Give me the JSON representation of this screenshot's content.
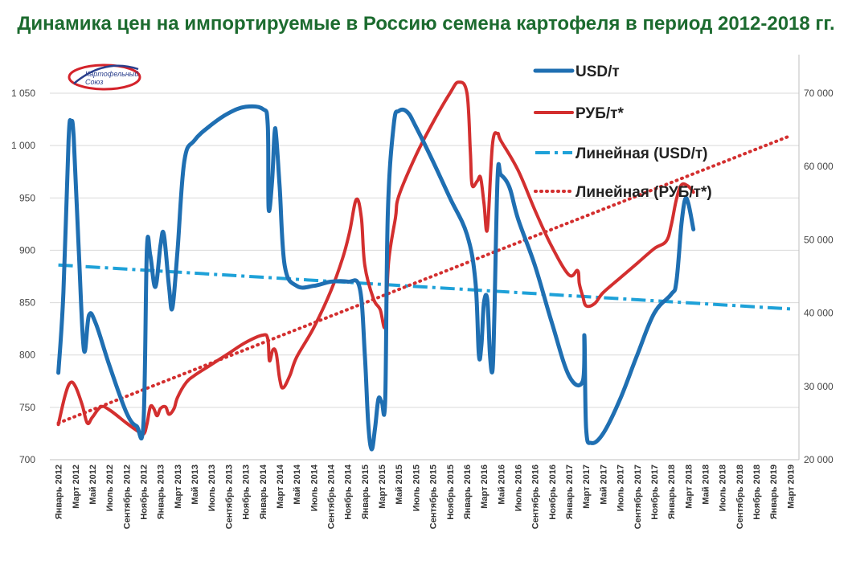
{
  "title": "Динамика цен на импортируемые в Россию семена картофеля в период 2012-2018 гг.",
  "logo": {
    "line1": "Картофельный",
    "line2": "Союз"
  },
  "colors": {
    "title": "#1c6b2f",
    "usd": "#1f6fb2",
    "rub": "#d32f2f",
    "usd_trend": "#1ea1d8",
    "rub_trend": "#d32f2f",
    "grid": "#d9d9d9",
    "logo_red": "#d4232b",
    "logo_blue": "#2a3f8c"
  },
  "chart_data": {
    "type": "line",
    "title": "Динамика цен на импортируемые в Россию семена картофеля в период 2012-2018 гг.",
    "x_categories": [
      "Январь 2012",
      "Март 2012",
      "Май 2012",
      "Июль 2012",
      "Сентябрь 2012",
      "Ноябрь 2012",
      "Январь 2013",
      "Март 2013",
      "Май 2013",
      "Июль 2013",
      "Сентябрь 2013",
      "Ноябрь 2013",
      "Январь 2014",
      "Март 2014",
      "Май 2014",
      "Июль 2014",
      "Сентябрь 2014",
      "Ноябрь 2014",
      "Январь 2015",
      "Март 2015",
      "Май 2015",
      "Июль 2015",
      "Сентябрь 2015",
      "Ноябрь 2015",
      "Январь 2016",
      "Март 2016",
      "Май 2016",
      "Июль 2016",
      "Сентябрь 2016",
      "Ноябрь 2016",
      "Январь 2017",
      "Март 2017",
      "Май 2017",
      "Июль 2017",
      "Сентябрь 2017",
      "Ноябрь 2017",
      "Январь 2018",
      "Март 2018",
      "Май 2018",
      "Июль 2018",
      "Сентябрь 2018",
      "Ноябрь 2018",
      "Январь 2019",
      "Март 2019"
    ],
    "y_left": {
      "min": 700,
      "max": 1050,
      "ticks": [
        700,
        750,
        800,
        850,
        900,
        950,
        1000,
        1050
      ],
      "tick_labels": [
        "700",
        "750",
        "800",
        "850",
        "900",
        "950",
        "1 000",
        "1 050"
      ]
    },
    "y_right": {
      "min": 20000,
      "max": 70000,
      "ticks": [
        20000,
        30000,
        40000,
        50000,
        60000,
        70000
      ],
      "tick_labels": [
        "20 000",
        "30 000",
        "40 000",
        "50 000",
        "60 000",
        "70 000"
      ]
    },
    "legend": {
      "position": "top-right",
      "entries": [
        "USD/т",
        "РУБ/т*",
        "Линейная (USD/т)",
        "Линейная (РУБ/т*)"
      ]
    },
    "series": [
      {
        "name": "USD/т",
        "axis": "left",
        "style": "solid",
        "points": [
          [
            0,
            783
          ],
          [
            0.3,
            860
          ],
          [
            0.6,
            1005
          ],
          [
            0.75,
            1022
          ],
          [
            0.9,
            1008
          ],
          [
            1.2,
            900
          ],
          [
            1.5,
            805
          ],
          [
            1.8,
            838
          ],
          [
            2.2,
            830
          ],
          [
            3,
            790
          ],
          [
            4,
            745
          ],
          [
            4.6,
            732
          ],
          [
            5,
            735
          ],
          [
            5.2,
            900
          ],
          [
            5.4,
            895
          ],
          [
            5.7,
            865
          ],
          [
            6,
            905
          ],
          [
            6.2,
            915
          ],
          [
            6.5,
            865
          ],
          [
            6.7,
            845
          ],
          [
            7,
            900
          ],
          [
            7.4,
            985
          ],
          [
            8,
            1005
          ],
          [
            9,
            1020
          ],
          [
            10,
            1031
          ],
          [
            11,
            1037
          ],
          [
            12,
            1035
          ],
          [
            12.3,
            1020
          ],
          [
            12.35,
            940
          ],
          [
            12.55,
            965
          ],
          [
            12.7,
            1012
          ],
          [
            12.8,
            1008
          ],
          [
            13,
            960
          ],
          [
            13.3,
            885
          ],
          [
            14,
            866
          ],
          [
            15,
            866
          ],
          [
            16,
            870
          ],
          [
            17,
            870
          ],
          [
            17.7,
            864
          ],
          [
            18,
            800
          ],
          [
            18.2,
            735
          ],
          [
            18.4,
            710
          ],
          [
            18.6,
            730
          ],
          [
            18.8,
            758
          ],
          [
            19,
            755
          ],
          [
            19.2,
            758
          ],
          [
            19.35,
            935
          ],
          [
            19.7,
            1020
          ],
          [
            20,
            1033
          ],
          [
            20.5,
            1032
          ],
          [
            21,
            1018
          ],
          [
            22,
            985
          ],
          [
            23,
            950
          ],
          [
            24,
            915
          ],
          [
            24.5,
            870
          ],
          [
            24.7,
            800
          ],
          [
            24.85,
            810
          ],
          [
            25,
            850
          ],
          [
            25.2,
            852
          ],
          [
            25.35,
            800
          ],
          [
            25.5,
            785
          ],
          [
            25.6,
            830
          ],
          [
            25.8,
            970
          ],
          [
            26,
            972
          ],
          [
            26.5,
            960
          ],
          [
            27,
            930
          ],
          [
            28,
            885
          ],
          [
            29,
            830
          ],
          [
            30,
            780
          ],
          [
            30.8,
            775
          ],
          [
            30.9,
            818
          ],
          [
            31,
            730
          ],
          [
            31.3,
            716
          ],
          [
            32,
            725
          ],
          [
            33,
            758
          ],
          [
            34,
            800
          ],
          [
            35,
            840
          ],
          [
            36,
            858
          ],
          [
            36.3,
            870
          ],
          [
            36.6,
            925
          ],
          [
            36.8,
            948
          ],
          [
            37,
            945
          ],
          [
            37.3,
            920
          ]
        ]
      },
      {
        "name": "РУБ/т*",
        "axis": "right",
        "style": "solid",
        "points": [
          [
            0,
            24800
          ],
          [
            0.4,
            28800
          ],
          [
            0.7,
            30500
          ],
          [
            1,
            30000
          ],
          [
            1.4,
            27500
          ],
          [
            1.7,
            25000
          ],
          [
            2,
            25800
          ],
          [
            2.5,
            27200
          ],
          [
            3,
            26800
          ],
          [
            4,
            25000
          ],
          [
            4.6,
            24000
          ],
          [
            5,
            23500
          ],
          [
            5.2,
            24800
          ],
          [
            5.4,
            27200
          ],
          [
            5.6,
            27000
          ],
          [
            5.8,
            26000
          ],
          [
            6,
            27000
          ],
          [
            6.3,
            27200
          ],
          [
            6.5,
            26200
          ],
          [
            6.8,
            27000
          ],
          [
            7,
            28500
          ],
          [
            7.5,
            30500
          ],
          [
            8,
            31500
          ],
          [
            9,
            33000
          ],
          [
            10,
            34500
          ],
          [
            11,
            36000
          ],
          [
            12,
            37000
          ],
          [
            12.3,
            36500
          ],
          [
            12.4,
            33500
          ],
          [
            12.6,
            35000
          ],
          [
            12.8,
            34500
          ],
          [
            13,
            31000
          ],
          [
            13.2,
            29800
          ],
          [
            13.6,
            31500
          ],
          [
            14,
            34000
          ],
          [
            15,
            38000
          ],
          [
            16,
            43000
          ],
          [
            16.7,
            47500
          ],
          [
            17.1,
            51000
          ],
          [
            17.5,
            55500
          ],
          [
            17.8,
            53000
          ],
          [
            18,
            46500
          ],
          [
            18.5,
            42000
          ],
          [
            18.9,
            40500
          ],
          [
            19.2,
            38300
          ],
          [
            19.4,
            47000
          ],
          [
            19.8,
            53000
          ],
          [
            20,
            56000
          ],
          [
            21,
            61500
          ],
          [
            22,
            66000
          ],
          [
            23,
            70000
          ],
          [
            23.5,
            71500
          ],
          [
            24,
            70000
          ],
          [
            24.2,
            62000
          ],
          [
            24.3,
            57500
          ],
          [
            24.6,
            58000
          ],
          [
            24.8,
            58500
          ],
          [
            25,
            55000
          ],
          [
            25.2,
            51500
          ],
          [
            25.5,
            63000
          ],
          [
            25.8,
            64500
          ],
          [
            26,
            63500
          ],
          [
            27,
            59500
          ],
          [
            28,
            54000
          ],
          [
            29,
            49000
          ],
          [
            30,
            45200
          ],
          [
            30.5,
            45800
          ],
          [
            30.6,
            44000
          ],
          [
            30.8,
            42300
          ],
          [
            31,
            41000
          ],
          [
            31.5,
            41300
          ],
          [
            32,
            42800
          ],
          [
            33,
            44800
          ],
          [
            34,
            46800
          ],
          [
            35,
            48800
          ],
          [
            35.7,
            49800
          ],
          [
            36,
            52000
          ],
          [
            36.3,
            55500
          ],
          [
            36.6,
            57500
          ],
          [
            37,
            57300
          ],
          [
            37.3,
            56500
          ]
        ]
      },
      {
        "name": "Линейная (USD/т)",
        "axis": "left",
        "style": "dash-dot",
        "points": [
          [
            0,
            886
          ],
          [
            43,
            844
          ]
        ]
      },
      {
        "name": "Линейная (РУБ/т*)",
        "axis": "right",
        "style": "dotted",
        "points": [
          [
            0,
            25000
          ],
          [
            43,
            64200
          ]
        ]
      }
    ]
  }
}
